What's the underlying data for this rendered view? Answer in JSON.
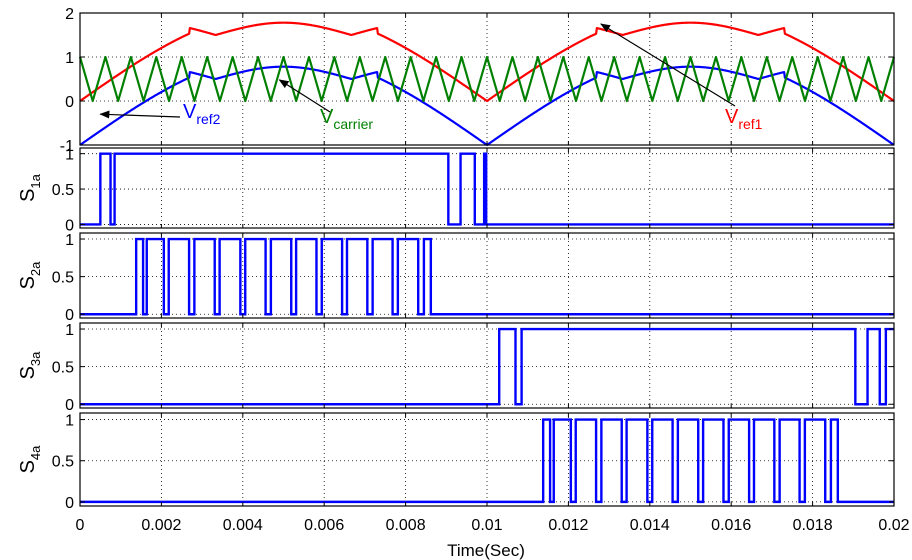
{
  "chart_data": {
    "type": "line",
    "xlabel": "Time(Sec)",
    "x_range": [
      0,
      0.02
    ],
    "x_ticks": [
      "0",
      "0.002",
      "0.004",
      "0.006",
      "0.008",
      "0.01",
      "0.012",
      "0.014",
      "0.016",
      "0.018",
      "0.02"
    ],
    "grid": "dotted",
    "panels": [
      {
        "ylabel": "",
        "yticks": [
          "-1",
          "0",
          "1",
          "2"
        ],
        "ylim": [
          -1,
          2
        ],
        "series": [
          {
            "name": "V_ref1",
            "label_main": "V",
            "label_sub": "ref1",
            "color": "#ff0000",
            "kind": "ref1"
          },
          {
            "name": "V_ref2",
            "label_main": "V",
            "label_sub": "ref2",
            "color": "#0000ff",
            "kind": "ref2"
          },
          {
            "name": "V_carrier",
            "label_main": "V",
            "label_sub": "carrier",
            "color": "#008000",
            "kind": "carrier",
            "carrier_frequency_hz": 1600,
            "range": [
              0,
              1
            ]
          }
        ]
      },
      {
        "ylabel_main": "S",
        "ylabel_sub": "1a",
        "yticks": [
          "0",
          "0.5",
          "1"
        ],
        "ylim": [
          -0.05,
          1.08
        ],
        "color": "#0000ff",
        "on_intervals": [
          [
            0.0005,
            0.00075
          ],
          [
            0.00085,
            0.00905
          ],
          [
            0.00935,
            0.0097
          ],
          [
            0.00993,
            0.00998
          ]
        ]
      },
      {
        "ylabel_main": "S",
        "ylabel_sub": "2a",
        "yticks": [
          "0",
          "0.5",
          "1"
        ],
        "ylim": [
          -0.05,
          1.08
        ],
        "color": "#0000ff",
        "on_intervals": [
          [
            0.00138,
            0.00155
          ],
          [
            0.00164,
            0.00206
          ],
          [
            0.00218,
            0.00268
          ],
          [
            0.00281,
            0.00331
          ],
          [
            0.00343,
            0.00394
          ],
          [
            0.00406,
            0.00456
          ],
          [
            0.00469,
            0.00519
          ],
          [
            0.00531,
            0.00581
          ],
          [
            0.00594,
            0.00644
          ],
          [
            0.00656,
            0.00706
          ],
          [
            0.00719,
            0.00768
          ],
          [
            0.00781,
            0.00831
          ],
          [
            0.00845,
            0.00862
          ]
        ]
      },
      {
        "ylabel_main": "S",
        "ylabel_sub": "3a",
        "yticks": [
          "0",
          "0.5",
          "1"
        ],
        "ylim": [
          -0.05,
          1.08
        ],
        "color": "#0000ff",
        "on_intervals": [
          [
            0.0103,
            0.0107
          ],
          [
            0.01085,
            0.01905
          ],
          [
            0.01935,
            0.01965
          ],
          [
            0.0198,
            0.02
          ]
        ]
      },
      {
        "ylabel_main": "S",
        "ylabel_sub": "4a",
        "yticks": [
          "0",
          "0.5",
          "1"
        ],
        "ylim": [
          -0.05,
          1.08
        ],
        "color": "#0000ff",
        "on_intervals": [
          [
            0.01138,
            0.01155
          ],
          [
            0.01164,
            0.01206
          ],
          [
            0.01218,
            0.01268
          ],
          [
            0.01281,
            0.01331
          ],
          [
            0.01343,
            0.01394
          ],
          [
            0.01406,
            0.01456
          ],
          [
            0.01469,
            0.01519
          ],
          [
            0.01531,
            0.01581
          ],
          [
            0.01594,
            0.01644
          ],
          [
            0.01656,
            0.01706
          ],
          [
            0.01719,
            0.01768
          ],
          [
            0.01781,
            0.01831
          ],
          [
            0.01845,
            0.01862
          ]
        ]
      }
    ],
    "annotations": [
      {
        "target": "V_ref2",
        "text_main": "V",
        "text_sub": "ref2",
        "color": "#0000ff",
        "arrow_to_x": 0.0005
      },
      {
        "target": "V_carrier",
        "text_main": "V",
        "text_sub": "carrier",
        "color": "#008000",
        "arrow_to_x": 0.0049
      },
      {
        "target": "V_ref1",
        "text_main": "V",
        "text_sub": "ref1",
        "color": "#ff0000",
        "arrow_to_x": 0.0128
      }
    ]
  }
}
